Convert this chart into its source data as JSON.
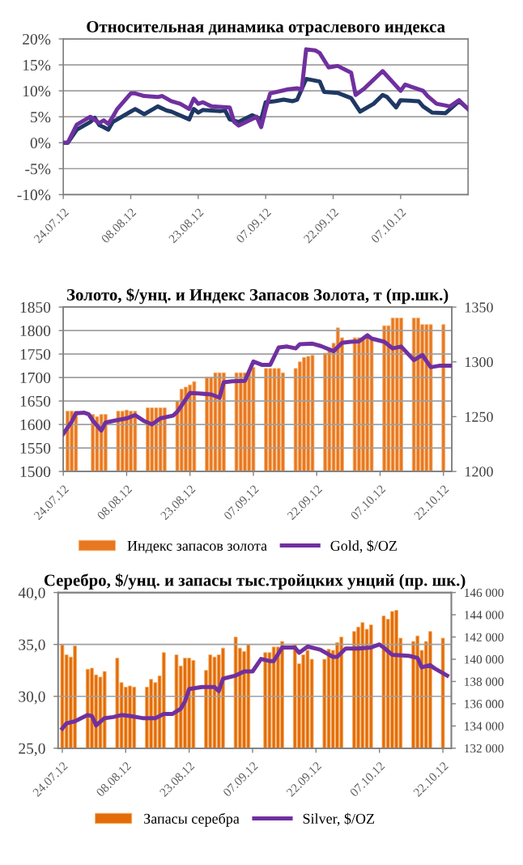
{
  "chart_data": [
    {
      "type": "line",
      "title": "Относительная динамика отраслевого индекса",
      "grid": "y",
      "legend": false,
      "xlim": [
        "2012-07-24",
        "2012-10-22"
      ],
      "xticks": [
        {
          "value": "2012-07-24",
          "label": "24.07.12"
        },
        {
          "value": "2012-08-08",
          "label": "08.08.12"
        },
        {
          "value": "2012-08-23",
          "label": "23.08.12"
        },
        {
          "value": "2012-09-07",
          "label": "07.09.12"
        },
        {
          "value": "2012-09-22",
          "label": "22.09.12"
        },
        {
          "value": "2012-10-07",
          "label": "07.10.12"
        }
      ],
      "ylim": [
        -10,
        20
      ],
      "yticks": [
        {
          "value": -10,
          "label": "-10%"
        },
        {
          "value": -5,
          "label": "-5%"
        },
        {
          "value": 0,
          "label": "0%"
        },
        {
          "value": 5,
          "label": "5%"
        },
        {
          "value": 10,
          "label": "10%"
        },
        {
          "value": 15,
          "label": "15%"
        },
        {
          "value": 20,
          "label": "20%"
        }
      ],
      "series": [
        {
          "color": "#1f3864",
          "x": [
            "2012-07-24",
            "2012-07-25",
            "2012-07-27",
            "2012-07-30",
            "2012-07-31",
            "2012-08-01",
            "2012-08-02",
            "2012-08-03",
            "2012-08-04",
            "2012-08-08",
            "2012-08-09",
            "2012-08-11",
            "2012-08-13",
            "2012-08-14",
            "2012-08-16",
            "2012-08-17",
            "2012-08-21",
            "2012-08-22",
            "2012-08-23",
            "2012-08-24",
            "2012-08-28",
            "2012-08-29",
            "2012-08-30",
            "2012-09-01",
            "2012-09-04",
            "2012-09-06",
            "2012-09-07",
            "2012-09-09",
            "2012-09-11",
            "2012-09-13",
            "2012-09-14",
            "2012-09-16",
            "2012-09-19",
            "2012-09-20",
            "2012-09-23",
            "2012-09-26",
            "2012-09-28",
            "2012-10-01",
            "2012-10-03",
            "2012-10-04",
            "2012-10-06",
            "2012-10-07",
            "2012-10-11",
            "2012-10-12",
            "2012-10-14",
            "2012-10-17",
            "2012-10-20",
            "2012-10-22"
          ],
          "values": [
            0,
            0,
            2.5,
            4.0,
            4.8,
            3.4,
            3.0,
            2.5,
            4.0,
            6.0,
            6.5,
            5.5,
            6.5,
            7.0,
            6.2,
            6.0,
            4.5,
            6.5,
            5.8,
            6.3,
            6.1,
            6.2,
            4.5,
            4.0,
            5.3,
            4.5,
            7.8,
            8.0,
            8.3,
            8.0,
            8.3,
            12.3,
            11.8,
            9.8,
            9.6,
            8.6,
            6.0,
            7.5,
            9.2,
            8.8,
            6.8,
            8.2,
            8.0,
            7.0,
            5.8,
            5.7,
            8.0,
            6.5
          ]
        },
        {
          "color": "#7030a0",
          "x": [
            "2012-07-24",
            "2012-07-25",
            "2012-07-27",
            "2012-07-30",
            "2012-08-01",
            "2012-08-02",
            "2012-08-03",
            "2012-08-04",
            "2012-08-05",
            "2012-08-08",
            "2012-08-09",
            "2012-08-11",
            "2012-08-14",
            "2012-08-15",
            "2012-08-17",
            "2012-08-19",
            "2012-08-21",
            "2012-08-22",
            "2012-08-23",
            "2012-08-24",
            "2012-08-26",
            "2012-08-30",
            "2012-08-31",
            "2012-09-01",
            "2012-09-05",
            "2012-09-06",
            "2012-09-07",
            "2012-09-08",
            "2012-09-12",
            "2012-09-14",
            "2012-09-15",
            "2012-09-16",
            "2012-09-18",
            "2012-09-19",
            "2012-09-21",
            "2012-09-23",
            "2012-09-26",
            "2012-09-27",
            "2012-09-29",
            "2012-10-03",
            "2012-10-07",
            "2012-10-08",
            "2012-10-12",
            "2012-10-13",
            "2012-10-15",
            "2012-10-18",
            "2012-10-20",
            "2012-10-22"
          ],
          "values": [
            0,
            0,
            3.5,
            5.0,
            3.8,
            4.3,
            3.6,
            5.0,
            6.5,
            9.5,
            9.5,
            9.0,
            8.8,
            9.0,
            8.0,
            7.5,
            6.5,
            8.5,
            7.5,
            7.8,
            7.0,
            6.8,
            4.0,
            3.3,
            5.0,
            3.0,
            6.5,
            9.5,
            10.3,
            10.5,
            10.2,
            18.0,
            17.8,
            17.3,
            14.5,
            14.8,
            13.5,
            9.2,
            10.5,
            13.8,
            10.0,
            11.2,
            10.0,
            9.0,
            7.5,
            7.0,
            8.2,
            6.5
          ]
        }
      ]
    },
    {
      "type": "bar",
      "title": "Золото, $/унц. и Индекс Запасов Золота, т (пр.шк.)",
      "grid": "y",
      "legend": "bottom",
      "xlim": [
        "2012-07-24",
        "2012-10-24"
      ],
      "xticks": [
        {
          "value": "2012-07-24",
          "label": "24.07.12"
        },
        {
          "value": "2012-08-08",
          "label": "08.08.12"
        },
        {
          "value": "2012-08-23",
          "label": "23.08.12"
        },
        {
          "value": "2012-09-07",
          "label": "07.09.12"
        },
        {
          "value": "2012-09-22",
          "label": "22.09.12"
        },
        {
          "value": "2012-10-07",
          "label": "07.10.12"
        },
        {
          "value": "2012-10-22",
          "label": "22.10.12"
        }
      ],
      "ylim": [
        1500,
        1850
      ],
      "yticks": [
        1500,
        1550,
        1600,
        1650,
        1700,
        1750,
        1800,
        1850
      ],
      "y2lim": [
        1200,
        1350
      ],
      "y2ticks": [
        1200,
        1250,
        1300,
        1350
      ],
      "series": [
        {
          "type": "bar",
          "axis": "y2",
          "name": "Индекс запасов золота",
          "color": "#e87722",
          "x": [
            "2012-07-25",
            "2012-07-26",
            "2012-07-27",
            "2012-07-31",
            "2012-08-01",
            "2012-08-02",
            "2012-08-03",
            "2012-08-06",
            "2012-08-07",
            "2012-08-08",
            "2012-08-09",
            "2012-08-10",
            "2012-08-13",
            "2012-08-14",
            "2012-08-15",
            "2012-08-16",
            "2012-08-17",
            "2012-08-20",
            "2012-08-21",
            "2012-08-22",
            "2012-08-23",
            "2012-08-24",
            "2012-08-27",
            "2012-08-28",
            "2012-08-29",
            "2012-08-30",
            "2012-08-31",
            "2012-09-03",
            "2012-09-04",
            "2012-09-05",
            "2012-09-06",
            "2012-09-07",
            "2012-09-10",
            "2012-09-11",
            "2012-09-12",
            "2012-09-13",
            "2012-09-14",
            "2012-09-17",
            "2012-09-18",
            "2012-09-19",
            "2012-09-20",
            "2012-09-21",
            "2012-09-24",
            "2012-09-25",
            "2012-09-26",
            "2012-09-27",
            "2012-09-28",
            "2012-10-01",
            "2012-10-02",
            "2012-10-03",
            "2012-10-04",
            "2012-10-05",
            "2012-10-08",
            "2012-10-09",
            "2012-10-10",
            "2012-10-11",
            "2012-10-12",
            "2012-10-15",
            "2012-10-16",
            "2012-10-17",
            "2012-10-18",
            "2012-10-19",
            "2012-10-22"
          ],
          "values": [
            1255,
            1255,
            1255,
            1252,
            1250,
            1252,
            1252,
            1255,
            1255,
            1256,
            1255,
            1255,
            1258,
            1258,
            1258,
            1258,
            1258,
            1264,
            1275,
            1277,
            1279,
            1282,
            1286,
            1286,
            1290,
            1290,
            1290,
            1290,
            1290,
            1290,
            1292,
            1295,
            1294,
            1294,
            1294,
            1294,
            1290,
            1294,
            1300,
            1304,
            1305,
            1306,
            1308,
            1311,
            1317,
            1331,
            1322,
            1322,
            1322,
            1322,
            1322,
            1322,
            1333,
            1333,
            1340,
            1340,
            1340,
            1340,
            1340,
            1334,
            1334,
            1334,
            1334
          ]
        },
        {
          "type": "line",
          "name": "Gold, $/OZ",
          "color": "#7030a0",
          "x": [
            "2012-07-24",
            "2012-07-26",
            "2012-07-27",
            "2012-07-29",
            "2012-07-30",
            "2012-07-31",
            "2012-08-02",
            "2012-08-03",
            "2012-08-05",
            "2012-08-08",
            "2012-08-10",
            "2012-08-12",
            "2012-08-14",
            "2012-08-16",
            "2012-08-19",
            "2012-08-20",
            "2012-08-23",
            "2012-08-25",
            "2012-08-28",
            "2012-08-30",
            "2012-08-31",
            "2012-09-02",
            "2012-09-05",
            "2012-09-07",
            "2012-09-09",
            "2012-09-11",
            "2012-09-13",
            "2012-09-15",
            "2012-09-17",
            "2012-09-18",
            "2012-09-21",
            "2012-09-23",
            "2012-09-26",
            "2012-09-28",
            "2012-09-30",
            "2012-10-02",
            "2012-10-04",
            "2012-10-05",
            "2012-10-08",
            "2012-10-10",
            "2012-10-12",
            "2012-10-15",
            "2012-10-17",
            "2012-10-19",
            "2012-10-21",
            "2012-10-24"
          ],
          "values": [
            1580,
            1606,
            1624,
            1625,
            1622,
            1608,
            1587,
            1604,
            1608,
            1613,
            1620,
            1608,
            1600,
            1613,
            1619,
            1627,
            1667,
            1666,
            1664,
            1657,
            1690,
            1692,
            1693,
            1734,
            1727,
            1727,
            1764,
            1766,
            1762,
            1771,
            1772,
            1767,
            1756,
            1774,
            1776,
            1777,
            1790,
            1783,
            1776,
            1762,
            1766,
            1737,
            1748,
            1722,
            1725,
            1725
          ]
        }
      ]
    },
    {
      "type": "bar",
      "title": "Серебро, $/унц. и запасы тыс.тройцких унций (пр. шк.)",
      "grid": "y",
      "legend": "bottom",
      "xlim": [
        "2012-07-23",
        "2012-10-24"
      ],
      "xticks": [
        {
          "value": "2012-07-24",
          "label": "24.07.12"
        },
        {
          "value": "2012-08-08",
          "label": "08.08.12"
        },
        {
          "value": "2012-08-23",
          "label": "23.08.12"
        },
        {
          "value": "2012-09-07",
          "label": "07.09.12"
        },
        {
          "value": "2012-09-22",
          "label": "22.09.12"
        },
        {
          "value": "2012-10-07",
          "label": "07.10.12"
        },
        {
          "value": "2012-10-22",
          "label": "22.10.12"
        }
      ],
      "ylim": [
        25,
        40
      ],
      "yticks": [
        {
          "value": 25,
          "label": "25,0"
        },
        {
          "value": 30,
          "label": "30,0"
        },
        {
          "value": 35,
          "label": "35,0"
        },
        {
          "value": 40,
          "label": "40,0"
        }
      ],
      "y2lim": [
        132000,
        146000
      ],
      "y2ticks": [
        {
          "value": 132000,
          "label": "132 000"
        },
        {
          "value": 134000,
          "label": "134 000"
        },
        {
          "value": 136000,
          "label": "136 000"
        },
        {
          "value": 138000,
          "label": "138 000"
        },
        {
          "value": 140000,
          "label": "140 000"
        },
        {
          "value": 142000,
          "label": "142 000"
        },
        {
          "value": 144000,
          "label": "144 000"
        },
        {
          "value": 146000,
          "label": "146 000"
        }
      ],
      "series": [
        {
          "type": "bar",
          "axis": "y2",
          "name": "Запасы серебра",
          "color": "#e36c09",
          "x": [
            "2012-07-24",
            "2012-07-25",
            "2012-07-26",
            "2012-07-27",
            "2012-07-30",
            "2012-07-31",
            "2012-08-01",
            "2012-08-02",
            "2012-08-03",
            "2012-08-06",
            "2012-08-07",
            "2012-08-08",
            "2012-08-09",
            "2012-08-10",
            "2012-08-13",
            "2012-08-14",
            "2012-08-15",
            "2012-08-16",
            "2012-08-17",
            "2012-08-20",
            "2012-08-21",
            "2012-08-22",
            "2012-08-23",
            "2012-08-24",
            "2012-08-27",
            "2012-08-28",
            "2012-08-29",
            "2012-08-30",
            "2012-08-31",
            "2012-09-03",
            "2012-09-04",
            "2012-09-05",
            "2012-09-06",
            "2012-09-10",
            "2012-09-11",
            "2012-09-12",
            "2012-09-13",
            "2012-09-14",
            "2012-09-17",
            "2012-09-18",
            "2012-09-19",
            "2012-09-20",
            "2012-09-21",
            "2012-09-24",
            "2012-09-25",
            "2012-09-26",
            "2012-09-27",
            "2012-09-28",
            "2012-10-01",
            "2012-10-02",
            "2012-10-03",
            "2012-10-04",
            "2012-10-05",
            "2012-10-08",
            "2012-10-09",
            "2012-10-10",
            "2012-10-11",
            "2012-10-12",
            "2012-10-15",
            "2012-10-16",
            "2012-10-17",
            "2012-10-18",
            "2012-10-19",
            "2012-10-22"
          ],
          "values": [
            141300,
            140400,
            140200,
            141200,
            139100,
            139200,
            138600,
            138400,
            138900,
            140100,
            137900,
            137500,
            137600,
            137500,
            137500,
            138200,
            137900,
            138500,
            140600,
            140400,
            139400,
            140100,
            140100,
            139900,
            139000,
            140400,
            140200,
            140400,
            141000,
            142000,
            141000,
            140700,
            141300,
            140600,
            140600,
            141100,
            141100,
            141600,
            141300,
            139600,
            140400,
            140800,
            140000,
            140000,
            140900,
            140800,
            141500,
            142000,
            142500,
            142900,
            143300,
            142700,
            143100,
            143900,
            143600,
            144300,
            144400,
            141900,
            141600,
            142100,
            140800,
            141600,
            142500,
            141900
          ]
        },
        {
          "type": "line",
          "name": "Silver, $/OZ",
          "color": "#7030a0",
          "x": [
            "2012-07-24",
            "2012-07-25",
            "2012-07-27",
            "2012-07-30",
            "2012-07-31",
            "2012-08-01",
            "2012-08-03",
            "2012-08-05",
            "2012-08-07",
            "2012-08-09",
            "2012-08-12",
            "2012-08-15",
            "2012-08-17",
            "2012-08-19",
            "2012-08-21",
            "2012-08-22",
            "2012-08-23",
            "2012-08-26",
            "2012-08-29",
            "2012-08-30",
            "2012-08-31",
            "2012-09-03",
            "2012-09-05",
            "2012-09-07",
            "2012-09-09",
            "2012-09-11",
            "2012-09-12",
            "2012-09-14",
            "2012-09-17",
            "2012-09-18",
            "2012-09-20",
            "2012-09-23",
            "2012-09-26",
            "2012-09-27",
            "2012-09-29",
            "2012-10-02",
            "2012-10-05",
            "2012-10-07",
            "2012-10-08",
            "2012-10-10",
            "2012-10-14",
            "2012-10-16",
            "2012-10-17",
            "2012-10-19",
            "2012-10-20",
            "2012-10-23"
          ],
          "values": [
            26.9,
            27.4,
            27.6,
            28.2,
            28.1,
            27.2,
            27.9,
            28.0,
            28.2,
            28.1,
            27.9,
            27.9,
            28.3,
            28.3,
            28.8,
            29.5,
            30.7,
            30.9,
            30.9,
            30.5,
            31.7,
            32.0,
            32.4,
            32.4,
            33.6,
            33.4,
            33.4,
            34.7,
            34.7,
            34.2,
            34.8,
            34.5,
            33.8,
            33.8,
            34.6,
            34.6,
            34.7,
            35.0,
            34.7,
            34.0,
            33.9,
            33.7,
            32.8,
            33.0,
            32.7,
            32.0
          ]
        }
      ]
    }
  ]
}
